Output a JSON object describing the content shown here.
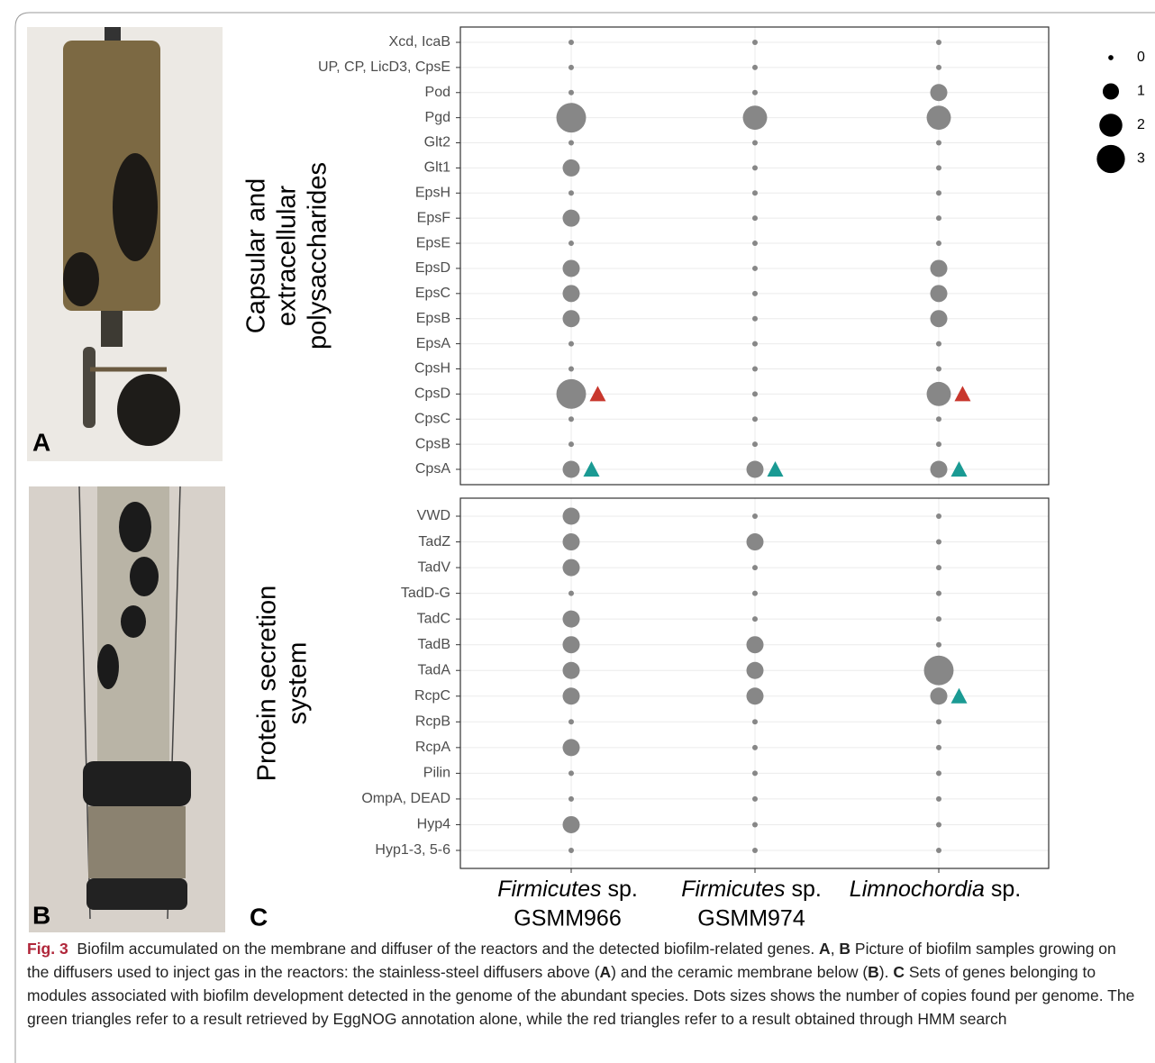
{
  "panels": {
    "a": "A",
    "b": "B",
    "c": "C"
  },
  "x_labels": [
    {
      "genus": "Firmicutes",
      "suffix": "sp.",
      "strain": "GSMM966"
    },
    {
      "genus": "Firmicutes",
      "suffix": "sp.",
      "strain": "GSMM974"
    },
    {
      "genus": "Limnochordia",
      "suffix": "sp."
    }
  ],
  "chart_data": [
    {
      "type": "dot",
      "facet_label": [
        "Capsular and",
        "extracellular",
        "polysaccharides"
      ],
      "categories": [
        "Xcd, IcaB",
        "UP, CP, LicD3, CpsE",
        "Pod",
        "Pgd",
        "Glt2",
        "Glt1",
        "EpsH",
        "EpsF",
        "EpsE",
        "EpsD",
        "EpsC",
        "EpsB",
        "EpsA",
        "CpsH",
        "CpsD",
        "CpsC",
        "CpsB",
        "CpsA"
      ],
      "color": "#878787",
      "grid": true,
      "series": [
        {
          "values": [
            0,
            0,
            0,
            3,
            0,
            1,
            0,
            1,
            0,
            1,
            1,
            1,
            0,
            0,
            3,
            0,
            0,
            1
          ],
          "triangle_colors": [
            null,
            null,
            null,
            null,
            null,
            null,
            null,
            null,
            null,
            null,
            null,
            null,
            null,
            null,
            "#c8372d",
            null,
            null,
            "#1a9a93"
          ]
        },
        {
          "values": [
            0,
            0,
            0,
            2,
            0,
            0,
            0,
            0,
            0,
            0,
            0,
            0,
            0,
            0,
            0,
            0,
            0,
            1
          ],
          "triangle_colors": [
            null,
            null,
            null,
            null,
            null,
            null,
            null,
            null,
            null,
            null,
            null,
            null,
            null,
            null,
            null,
            null,
            null,
            "#1a9a93"
          ]
        },
        {
          "values": [
            0,
            0,
            1,
            2,
            0,
            0,
            0,
            0,
            0,
            1,
            1,
            1,
            0,
            0,
            2,
            0,
            0,
            1
          ],
          "triangle_colors": [
            null,
            null,
            null,
            null,
            null,
            null,
            null,
            null,
            null,
            null,
            null,
            null,
            null,
            null,
            "#c8372d",
            null,
            null,
            "#1a9a93"
          ]
        }
      ],
      "size_ticks": [
        0,
        1,
        2,
        3
      ]
    },
    {
      "type": "dot",
      "facet_label": [
        "Protein secretion",
        "system"
      ],
      "categories": [
        "VWD",
        "TadZ",
        "TadV",
        "TadD-G",
        "TadC",
        "TadB",
        "TadA",
        "RcpC",
        "RcpB",
        "RcpA",
        "Pilin",
        "OmpA, DEAD",
        "Hyp4",
        "Hyp1-3, 5-6"
      ],
      "color": "#878787",
      "grid": true,
      "series": [
        {
          "values": [
            1,
            1,
            1,
            0,
            1,
            1,
            1,
            1,
            0,
            1,
            0,
            0,
            1,
            0
          ],
          "triangle_colors": [
            null,
            null,
            null,
            null,
            null,
            null,
            null,
            null,
            null,
            null,
            null,
            null,
            null,
            null
          ]
        },
        {
          "values": [
            0,
            1,
            0,
            0,
            0,
            1,
            1,
            1,
            0,
            0,
            0,
            0,
            0,
            0
          ],
          "triangle_colors": [
            null,
            null,
            null,
            null,
            null,
            null,
            null,
            null,
            null,
            null,
            null,
            null,
            null,
            null
          ]
        },
        {
          "values": [
            0,
            0,
            0,
            0,
            0,
            0,
            3,
            1,
            0,
            0,
            0,
            0,
            0,
            0
          ],
          "triangle_colors": [
            null,
            null,
            null,
            null,
            null,
            null,
            null,
            "#1a9a93",
            null,
            null,
            null,
            null,
            null,
            null
          ]
        }
      ]
    }
  ],
  "caption": [
    {
      "text": "Fig. 3",
      "bold": true,
      "color": "#b0263a"
    },
    {
      "text": "  Biofilm accumulated on the membrane and diffuser of the reactors and the detected biofilm-related genes. ",
      "bold": false
    },
    {
      "text": "A",
      "bold": true
    },
    {
      "text": ", ",
      "bold": false
    },
    {
      "text": "B",
      "bold": true
    },
    {
      "text": " Picture of biofilm samples growing on the diffusers used to inject gas in the reactors: the stainless-steel diffusers above (",
      "bold": false
    },
    {
      "text": "A",
      "bold": true
    },
    {
      "text": ") and the ceramic membrane below (",
      "bold": false
    },
    {
      "text": "B",
      "bold": true
    },
    {
      "text": "). ",
      "bold": false
    },
    {
      "text": "C",
      "bold": true
    },
    {
      "text": " Sets of genes belonging to modules associated with biofilm development detected in the genome of the abundant species. Dots sizes shows the number of copies found per genome. The green triangles refer to a result retrieved by EggNOG annotation alone, while the red triangles refer to a result obtained through HMM search",
      "bold": false
    }
  ]
}
